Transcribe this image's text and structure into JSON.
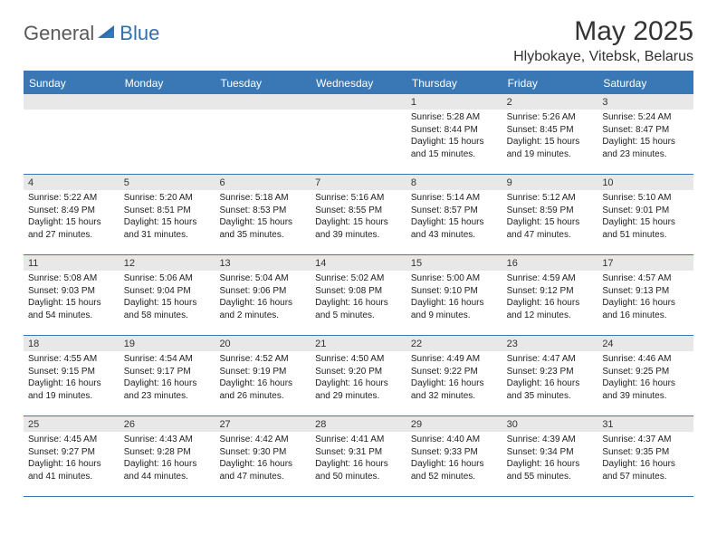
{
  "logo": {
    "text1": "General",
    "text2": "Blue"
  },
  "title": "May 2025",
  "location": "Hlybokaye, Vitebsk, Belarus",
  "colors": {
    "header_bar": "#3a78b5",
    "daynum_bg": "#e8e8e8",
    "rule": "#3a78b5",
    "text": "#222222",
    "logo_gray": "#5a5a5a",
    "logo_blue": "#2f6fb0"
  },
  "weekdays": [
    "Sunday",
    "Monday",
    "Tuesday",
    "Wednesday",
    "Thursday",
    "Friday",
    "Saturday"
  ],
  "weeks": [
    [
      null,
      null,
      null,
      null,
      {
        "n": "1",
        "sr": "Sunrise: 5:28 AM",
        "ss": "Sunset: 8:44 PM",
        "dl": "Daylight: 15 hours and 15 minutes."
      },
      {
        "n": "2",
        "sr": "Sunrise: 5:26 AM",
        "ss": "Sunset: 8:45 PM",
        "dl": "Daylight: 15 hours and 19 minutes."
      },
      {
        "n": "3",
        "sr": "Sunrise: 5:24 AM",
        "ss": "Sunset: 8:47 PM",
        "dl": "Daylight: 15 hours and 23 minutes."
      }
    ],
    [
      {
        "n": "4",
        "sr": "Sunrise: 5:22 AM",
        "ss": "Sunset: 8:49 PM",
        "dl": "Daylight: 15 hours and 27 minutes."
      },
      {
        "n": "5",
        "sr": "Sunrise: 5:20 AM",
        "ss": "Sunset: 8:51 PM",
        "dl": "Daylight: 15 hours and 31 minutes."
      },
      {
        "n": "6",
        "sr": "Sunrise: 5:18 AM",
        "ss": "Sunset: 8:53 PM",
        "dl": "Daylight: 15 hours and 35 minutes."
      },
      {
        "n": "7",
        "sr": "Sunrise: 5:16 AM",
        "ss": "Sunset: 8:55 PM",
        "dl": "Daylight: 15 hours and 39 minutes."
      },
      {
        "n": "8",
        "sr": "Sunrise: 5:14 AM",
        "ss": "Sunset: 8:57 PM",
        "dl": "Daylight: 15 hours and 43 minutes."
      },
      {
        "n": "9",
        "sr": "Sunrise: 5:12 AM",
        "ss": "Sunset: 8:59 PM",
        "dl": "Daylight: 15 hours and 47 minutes."
      },
      {
        "n": "10",
        "sr": "Sunrise: 5:10 AM",
        "ss": "Sunset: 9:01 PM",
        "dl": "Daylight: 15 hours and 51 minutes."
      }
    ],
    [
      {
        "n": "11",
        "sr": "Sunrise: 5:08 AM",
        "ss": "Sunset: 9:03 PM",
        "dl": "Daylight: 15 hours and 54 minutes."
      },
      {
        "n": "12",
        "sr": "Sunrise: 5:06 AM",
        "ss": "Sunset: 9:04 PM",
        "dl": "Daylight: 15 hours and 58 minutes."
      },
      {
        "n": "13",
        "sr": "Sunrise: 5:04 AM",
        "ss": "Sunset: 9:06 PM",
        "dl": "Daylight: 16 hours and 2 minutes."
      },
      {
        "n": "14",
        "sr": "Sunrise: 5:02 AM",
        "ss": "Sunset: 9:08 PM",
        "dl": "Daylight: 16 hours and 5 minutes."
      },
      {
        "n": "15",
        "sr": "Sunrise: 5:00 AM",
        "ss": "Sunset: 9:10 PM",
        "dl": "Daylight: 16 hours and 9 minutes."
      },
      {
        "n": "16",
        "sr": "Sunrise: 4:59 AM",
        "ss": "Sunset: 9:12 PM",
        "dl": "Daylight: 16 hours and 12 minutes."
      },
      {
        "n": "17",
        "sr": "Sunrise: 4:57 AM",
        "ss": "Sunset: 9:13 PM",
        "dl": "Daylight: 16 hours and 16 minutes."
      }
    ],
    [
      {
        "n": "18",
        "sr": "Sunrise: 4:55 AM",
        "ss": "Sunset: 9:15 PM",
        "dl": "Daylight: 16 hours and 19 minutes."
      },
      {
        "n": "19",
        "sr": "Sunrise: 4:54 AM",
        "ss": "Sunset: 9:17 PM",
        "dl": "Daylight: 16 hours and 23 minutes."
      },
      {
        "n": "20",
        "sr": "Sunrise: 4:52 AM",
        "ss": "Sunset: 9:19 PM",
        "dl": "Daylight: 16 hours and 26 minutes."
      },
      {
        "n": "21",
        "sr": "Sunrise: 4:50 AM",
        "ss": "Sunset: 9:20 PM",
        "dl": "Daylight: 16 hours and 29 minutes."
      },
      {
        "n": "22",
        "sr": "Sunrise: 4:49 AM",
        "ss": "Sunset: 9:22 PM",
        "dl": "Daylight: 16 hours and 32 minutes."
      },
      {
        "n": "23",
        "sr": "Sunrise: 4:47 AM",
        "ss": "Sunset: 9:23 PM",
        "dl": "Daylight: 16 hours and 35 minutes."
      },
      {
        "n": "24",
        "sr": "Sunrise: 4:46 AM",
        "ss": "Sunset: 9:25 PM",
        "dl": "Daylight: 16 hours and 39 minutes."
      }
    ],
    [
      {
        "n": "25",
        "sr": "Sunrise: 4:45 AM",
        "ss": "Sunset: 9:27 PM",
        "dl": "Daylight: 16 hours and 41 minutes."
      },
      {
        "n": "26",
        "sr": "Sunrise: 4:43 AM",
        "ss": "Sunset: 9:28 PM",
        "dl": "Daylight: 16 hours and 44 minutes."
      },
      {
        "n": "27",
        "sr": "Sunrise: 4:42 AM",
        "ss": "Sunset: 9:30 PM",
        "dl": "Daylight: 16 hours and 47 minutes."
      },
      {
        "n": "28",
        "sr": "Sunrise: 4:41 AM",
        "ss": "Sunset: 9:31 PM",
        "dl": "Daylight: 16 hours and 50 minutes."
      },
      {
        "n": "29",
        "sr": "Sunrise: 4:40 AM",
        "ss": "Sunset: 9:33 PM",
        "dl": "Daylight: 16 hours and 52 minutes."
      },
      {
        "n": "30",
        "sr": "Sunrise: 4:39 AM",
        "ss": "Sunset: 9:34 PM",
        "dl": "Daylight: 16 hours and 55 minutes."
      },
      {
        "n": "31",
        "sr": "Sunrise: 4:37 AM",
        "ss": "Sunset: 9:35 PM",
        "dl": "Daylight: 16 hours and 57 minutes."
      }
    ]
  ]
}
